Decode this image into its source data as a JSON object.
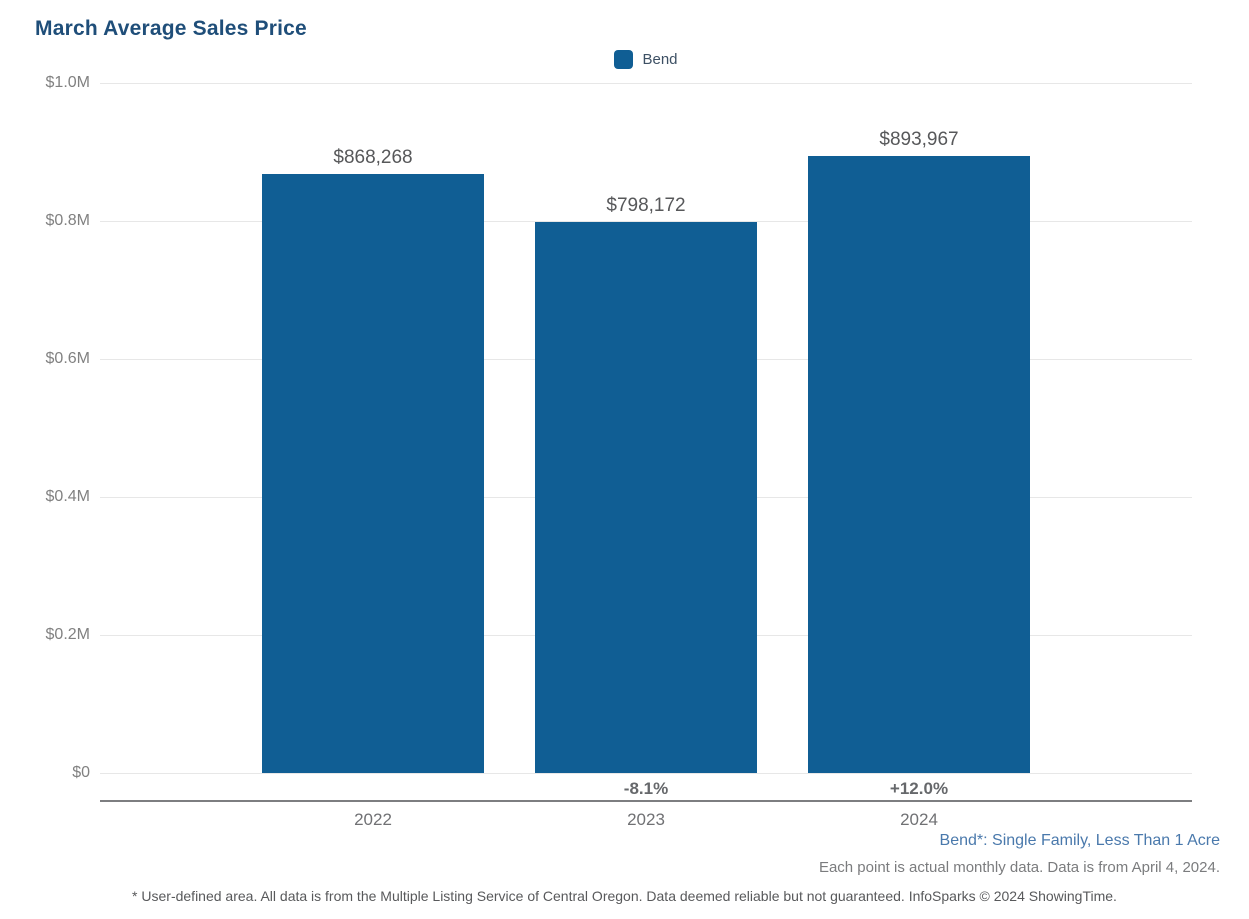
{
  "title": "March Average Sales Price",
  "legend": {
    "items": [
      {
        "label": "Bend",
        "color": "#105e94"
      }
    ]
  },
  "chart_data": {
    "type": "bar",
    "title": "March Average Sales Price",
    "categories": [
      "2022",
      "2023",
      "2024"
    ],
    "series": [
      {
        "name": "Bend",
        "values": [
          868268,
          798172,
          893967
        ]
      }
    ],
    "bar_value_labels": [
      "$868,268",
      "$798,172",
      "$893,967"
    ],
    "pct_change_labels": [
      "",
      "-8.1%",
      "+12.0%"
    ],
    "xlabel": "",
    "ylabel": "",
    "ylim": [
      0,
      1000000
    ],
    "ytick_values": [
      1000000,
      800000,
      600000,
      400000,
      200000,
      0
    ],
    "ytick_labels": [
      "$1.0M",
      "$0.8M",
      "$0.6M",
      "$0.4M",
      "$0.2M",
      "$0"
    ],
    "grid": true,
    "legend_position": "top-center",
    "bar_color": "#105e94"
  },
  "footer": {
    "series_note": "Bend*: Single Family, Less Than 1 Acre",
    "data_note": "Each point is actual monthly data. Data is from April 4, 2024.",
    "disclaimer": "* User-defined area. All data is from the Multiple Listing Service of Central Oregon. Data deemed reliable but not guaranteed. InfoSparks © 2024 ShowingTime."
  },
  "colors": {
    "title": "#1f4e79",
    "bar": "#105e94",
    "value_label": "#57585a",
    "axis_text": "#818181",
    "gridline": "#e7e7e7",
    "series_note": "#4a79ac"
  }
}
